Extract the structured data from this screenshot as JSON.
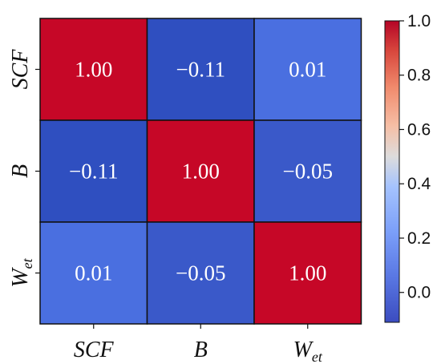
{
  "chart_data": {
    "type": "heatmap",
    "title": "",
    "x_labels": [
      "SCF",
      "B",
      "W"
    ],
    "y_labels": [
      "SCF",
      "B",
      "W"
    ],
    "x_label_subscripts": [
      "",
      "",
      "et"
    ],
    "y_label_subscripts": [
      "",
      "",
      "et"
    ],
    "values": [
      [
        1.0,
        -0.11,
        0.01
      ],
      [
        -0.11,
        1.0,
        -0.05
      ],
      [
        0.01,
        -0.05,
        1.0
      ]
    ],
    "value_labels": [
      [
        "1.00",
        "−0.11",
        "0.01"
      ],
      [
        "−0.11",
        "1.00",
        "−0.05"
      ],
      [
        "0.01",
        "−0.05",
        "1.00"
      ]
    ],
    "colormap": "coolwarm",
    "colorbar": {
      "range": [
        -0.11,
        1.0
      ],
      "ticks": [
        0.0,
        0.2,
        0.4,
        0.6,
        0.8,
        1.0
      ],
      "tick_labels": [
        "0.0",
        "0.2",
        "0.4",
        "0.6",
        "0.8",
        "1.0"
      ]
    },
    "colors": {
      "cell_1_00": "#c60727",
      "cell_-0_11": "#2f4fc0",
      "cell_-0_05": "#3a59c9",
      "cell_0_01": "#4a6fe0"
    }
  }
}
